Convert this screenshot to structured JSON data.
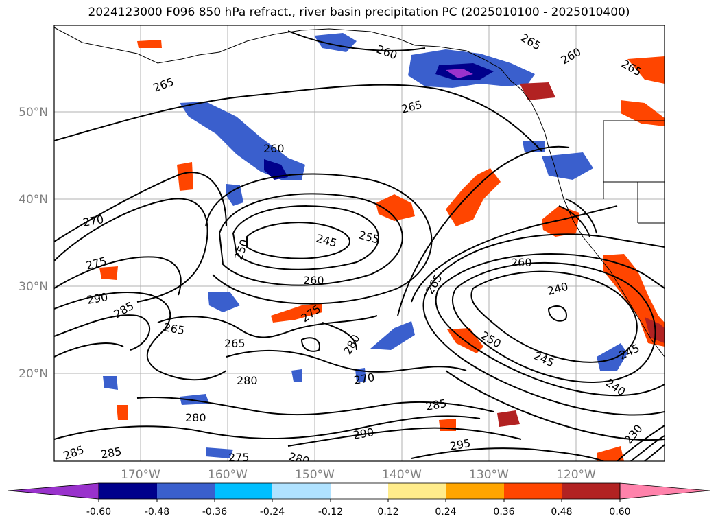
{
  "title": "2024123000 F096 850 hPa refract., river basin precipitation PC (2025010100 - 2025010400)",
  "lat_labels": [
    "50°N",
    "40°N",
    "30°N",
    "20°N"
  ],
  "lon_labels": [
    "170°W",
    "160°W",
    "150°W",
    "140°W",
    "130°W",
    "120°W"
  ],
  "contour_labels": [
    "265",
    "260",
    "265",
    "260",
    "265",
    "265",
    "260",
    "270",
    "250",
    "245",
    "255",
    "275",
    "260",
    "290",
    "285",
    "265",
    "265",
    "275",
    "280",
    "270",
    "280",
    "260",
    "265",
    "240",
    "250",
    "245",
    "245",
    "240",
    "285",
    "290",
    "295",
    "285",
    "285",
    "275",
    "280",
    "280",
    "230"
  ],
  "colorbar": {
    "ticks": [
      "-0.60",
      "-0.48",
      "-0.36",
      "-0.24",
      "-0.12",
      "0.12",
      "0.24",
      "0.36",
      "0.48",
      "0.60"
    ],
    "colors": [
      "#9932cc",
      "#00008b",
      "#3a5fcd",
      "#00bfff",
      "#b0e2ff",
      "#ffffff",
      "#ffec8b",
      "#ffa500",
      "#ff4500",
      "#b22222",
      "#ff82ab"
    ]
  }
}
